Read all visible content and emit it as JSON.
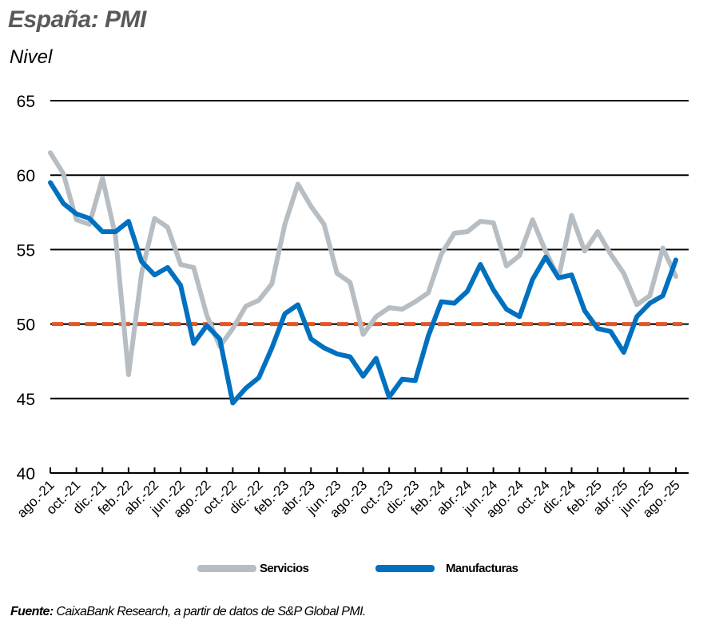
{
  "header": {
    "title": "España: PMI",
    "subtitle": "Nivel"
  },
  "legend": {
    "items": [
      {
        "label": "Servicios",
        "color": "#b7bec3"
      },
      {
        "label": "Manufacturas",
        "color": "#0070c0"
      }
    ]
  },
  "source": {
    "label": "Fuente:",
    "text": " CaixaBank Research, a partir de datos de S&P Global PMI."
  },
  "colors": {
    "servicios": "#b7bec3",
    "manufacturas": "#0070c0",
    "reference_line": "#e3562a",
    "gridline": "#000000"
  },
  "chart_data": {
    "type": "line",
    "title": "España: PMI",
    "subtitle": "Nivel",
    "xlabel": "",
    "ylabel": "Nivel",
    "ylim": [
      40,
      65
    ],
    "yticks": [
      40,
      45,
      50,
      55,
      60,
      65
    ],
    "grid": true,
    "legend_position": "bottom",
    "reference_line": {
      "y": 50,
      "style": "dashed",
      "color": "#e3562a"
    },
    "x": [
      "ago-21",
      "sep-21",
      "oct-21",
      "nov-21",
      "dic-21",
      "ene-22",
      "feb-22",
      "mar-22",
      "abr-22",
      "may-22",
      "jun-22",
      "jul-22",
      "ago-22",
      "sep-22",
      "oct-22",
      "nov-22",
      "dic-22",
      "ene-23",
      "feb-23",
      "mar-23",
      "abr-23",
      "may-23",
      "jun-23",
      "jul-23",
      "ago-23",
      "sep-23",
      "oct-23",
      "nov-23",
      "dic-23",
      "ene-24",
      "feb-24",
      "mar-24",
      "abr-24",
      "may-24",
      "jun-24",
      "jul-24",
      "ago-24",
      "sep-24",
      "oct-24",
      "nov-24",
      "dic-24",
      "ene-25",
      "feb-25",
      "mar-25",
      "abr-25",
      "may-25",
      "jun-25",
      "jul-25",
      "ago-25"
    ],
    "xtick_labels": [
      "ago.-21",
      "oct.-21",
      "dic.-21",
      "feb.-22",
      "abr.-22",
      "jun.-22",
      "ago.-22",
      "oct.-22",
      "dic.-22",
      "feb.-23",
      "abr.-23",
      "jun.-23",
      "ago.-23",
      "oct.-23",
      "dic.-23",
      "feb.-24",
      "abr.-24",
      "jun.-24",
      "ago.-24",
      "oct.-24",
      "dic.-24",
      "feb.-25",
      "abr.-25",
      "jun.-25",
      "ago.-25"
    ],
    "series": [
      {
        "name": "Servicios",
        "color": "#b7bec3",
        "values": [
          61.5,
          60.1,
          57.0,
          56.7,
          59.8,
          55.9,
          46.6,
          53.4,
          57.1,
          56.5,
          54.0,
          53.8,
          50.6,
          48.5,
          49.7,
          51.2,
          51.6,
          52.7,
          56.7,
          59.4,
          57.9,
          56.7,
          53.4,
          52.8,
          49.3,
          50.5,
          51.1,
          51.0,
          51.5,
          52.1,
          54.7,
          56.1,
          56.2,
          56.9,
          56.8,
          53.9,
          54.6,
          57.0,
          54.9,
          53.1,
          57.3,
          54.9,
          56.2,
          54.7,
          53.4,
          51.3,
          51.9,
          55.1,
          53.2
        ]
      },
      {
        "name": "Manufacturas",
        "color": "#0070c0",
        "values": [
          59.5,
          58.1,
          57.4,
          57.1,
          56.2,
          56.2,
          56.9,
          54.2,
          53.3,
          53.8,
          52.6,
          48.7,
          49.9,
          49.0,
          44.7,
          45.7,
          46.4,
          48.4,
          50.7,
          51.3,
          49.0,
          48.4,
          48.0,
          47.8,
          46.5,
          47.7,
          45.1,
          46.3,
          46.2,
          49.2,
          51.5,
          51.4,
          52.2,
          54.0,
          52.3,
          51.0,
          50.5,
          53.0,
          54.5,
          53.1,
          53.3,
          50.9,
          49.7,
          49.5,
          48.1,
          50.5,
          51.4,
          51.9,
          54.3
        ]
      }
    ]
  }
}
